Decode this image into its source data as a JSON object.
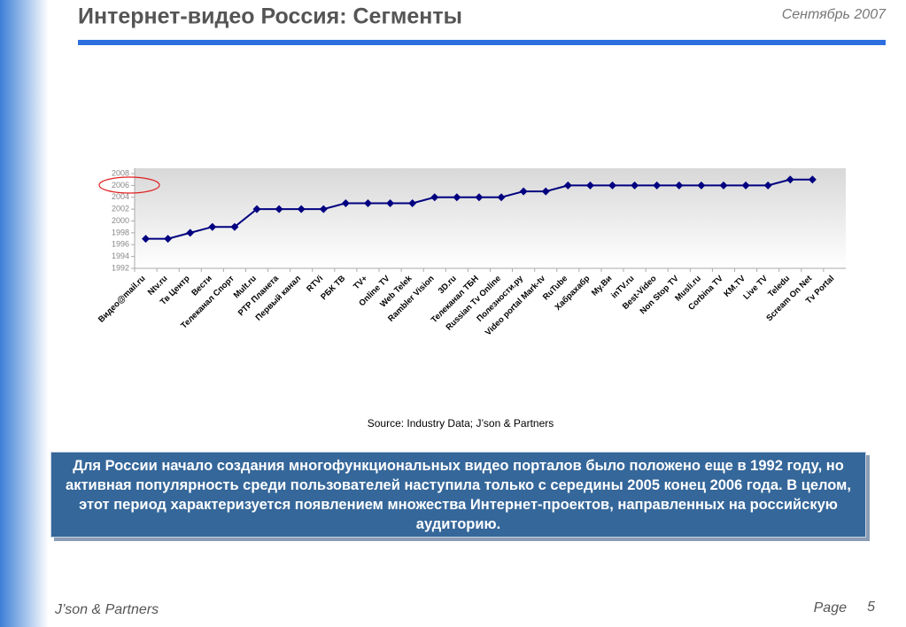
{
  "header": {
    "title": "Интернет-видео Россия: Сегменты",
    "date": "Сентябрь 2007"
  },
  "chart_data": {
    "type": "line",
    "categories": [
      "Видео@mail.ru",
      "Ntv.ru",
      "Тв Центр",
      "Вести",
      "Телеканал Спорт",
      "Mult.ru",
      "РТР Планета",
      "Первый канал",
      "RTVi",
      "РБК ТВ",
      "TV+",
      "Online TV",
      "Web Telek",
      "Rambler Vision",
      "3D.ru",
      "Телеканал ТБН",
      "Russian Tv Online",
      "Полезности.ру",
      "Video portal Mark-tv",
      "RuTube",
      "Хабрахабр",
      "My.Ви",
      "inTV.ru",
      "Best-Video",
      "Non Stop TV",
      "Musli.ru",
      "Corbina TV",
      "KM.TV",
      "Live TV",
      "Teledu",
      "Scream On Net",
      "Tv Portal"
    ],
    "values": [
      1997,
      1997,
      1998,
      1999,
      1999,
      2002,
      2002,
      2002,
      2002,
      2003,
      2003,
      2003,
      2003,
      2004,
      2004,
      2004,
      2004,
      2005,
      2005,
      2006,
      2006,
      2006,
      2006,
      2006,
      2006,
      2006,
      2006,
      2006,
      2006,
      2007,
      2007,
      null
    ],
    "color": "#000080",
    "ylim": [
      1992,
      2008
    ],
    "yticks": [
      1992,
      1994,
      1996,
      1998,
      2000,
      2002,
      2004,
      2006,
      2008
    ],
    "grid": false,
    "source": "Source: Industry Data; J’son & Partners"
  },
  "summary": "Для России начало создания многофункциональных видео порталов было положено еще в 1992 году, но активная популярность среди пользователей наступила только с середины 2005 конец 2006 года. В целом, этот период характеризуется появлением множества Интернет-проектов, направленных на российскую аудиторию.",
  "footer": {
    "company": "J’son & Partners",
    "page_label": "Page",
    "page_number": "5"
  }
}
